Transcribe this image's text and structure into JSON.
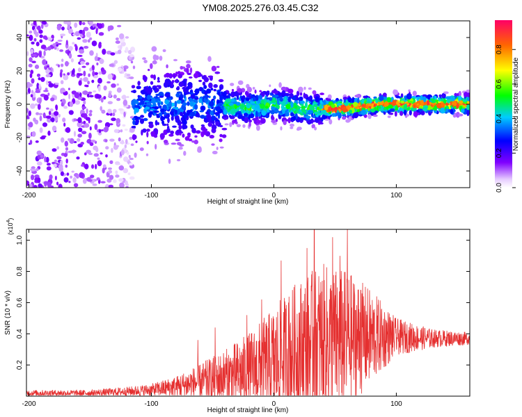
{
  "title": "YM08.2025.276.03.45.C32",
  "chart_data": [
    {
      "type": "heatmap",
      "xlabel": "Height of straight line (km)",
      "ylabel": "Frequency (Hz)",
      "xlim": [
        -202,
        160
      ],
      "ylim": [
        -50,
        50
      ],
      "xticks": [
        -200,
        -100,
        0,
        100
      ],
      "xtick_labels": [
        "-200",
        "-100",
        "0",
        "100"
      ],
      "yticks": [
        -40,
        -20,
        0,
        20,
        40
      ],
      "ytick_labels": [
        "-40",
        "-20",
        "0",
        "20",
        "40"
      ],
      "colorbar": {
        "label": "Normalized spectral amplitude",
        "range": [
          0,
          0.97
        ],
        "ticks": [
          0,
          0.2,
          0.4,
          0.6,
          0.8
        ],
        "tick_labels": [
          "0.0",
          "0.2",
          "0.4",
          "0.6",
          "0.8"
        ]
      },
      "ridge_peak_frequency_hz": [
        {
          "height_km": -120,
          "freq_hz": -5
        },
        {
          "height_km": -100,
          "freq_hz": 0
        },
        {
          "height_km": -50,
          "freq_hz": 0
        },
        {
          "height_km": -20,
          "freq_hz": -2
        },
        {
          "height_km": 0,
          "freq_hz": 0
        },
        {
          "height_km": 30,
          "freq_hz": -3
        },
        {
          "height_km": 60,
          "freq_hz": -2
        },
        {
          "height_km": 90,
          "freq_hz": 0
        },
        {
          "height_km": 160,
          "freq_hz": 0
        }
      ]
    },
    {
      "type": "line",
      "xlabel": "Height of straight line (km)",
      "ylabel": "SNR (10 * v/v)",
      "yscale_label": "(x10",
      "yscale_exp": "4",
      "yscale_close": ")",
      "xlim": [
        -202,
        160
      ],
      "ylim": [
        0,
        1.07
      ],
      "xticks": [
        -200,
        -100,
        0,
        100
      ],
      "xtick_labels": [
        "-200",
        "-100",
        "0",
        "100"
      ],
      "yticks": [
        0.2,
        0.4,
        0.6,
        0.8,
        1.0
      ],
      "ytick_labels": [
        "0.2",
        "0.4",
        "0.6",
        "0.8",
        "1.0"
      ],
      "series": [
        {
          "name": "SNR",
          "color": "#e53030",
          "envelope": [
            {
              "x": -202,
              "base": 0.02,
              "amp": 0.02
            },
            {
              "x": -150,
              "base": 0.02,
              "amp": 0.02
            },
            {
              "x": -120,
              "base": 0.03,
              "amp": 0.03
            },
            {
              "x": -100,
              "base": 0.04,
              "amp": 0.04
            },
            {
              "x": -80,
              "base": 0.06,
              "amp": 0.07
            },
            {
              "x": -60,
              "base": 0.09,
              "amp": 0.12
            },
            {
              "x": -40,
              "base": 0.12,
              "amp": 0.18
            },
            {
              "x": -20,
              "base": 0.16,
              "amp": 0.25
            },
            {
              "x": 0,
              "base": 0.22,
              "amp": 0.35
            },
            {
              "x": 20,
              "base": 0.3,
              "amp": 0.45
            },
            {
              "x": 40,
              "base": 0.35,
              "amp": 0.5
            },
            {
              "x": 60,
              "base": 0.36,
              "amp": 0.45
            },
            {
              "x": 80,
              "base": 0.38,
              "amp": 0.3
            },
            {
              "x": 100,
              "base": 0.38,
              "amp": 0.12
            },
            {
              "x": 130,
              "base": 0.37,
              "amp": 0.06
            },
            {
              "x": 160,
              "base": 0.37,
              "amp": 0.04
            }
          ],
          "spikes": [
            {
              "x": -62,
              "y": 0.36
            },
            {
              "x": -48,
              "y": 0.44
            },
            {
              "x": -22,
              "y": 0.52
            },
            {
              "x": -10,
              "y": 0.62
            },
            {
              "x": 6,
              "y": 0.87
            },
            {
              "x": 12,
              "y": 0.6
            },
            {
              "x": 27,
              "y": 0.95
            },
            {
              "x": 33,
              "y": 1.07
            },
            {
              "x": 48,
              "y": 1.02
            },
            {
              "x": 54,
              "y": 0.9
            },
            {
              "x": 60,
              "y": 1.07
            },
            {
              "x": 71,
              "y": 0.68
            },
            {
              "x": 88,
              "y": 0.56
            }
          ]
        }
      ]
    }
  ]
}
